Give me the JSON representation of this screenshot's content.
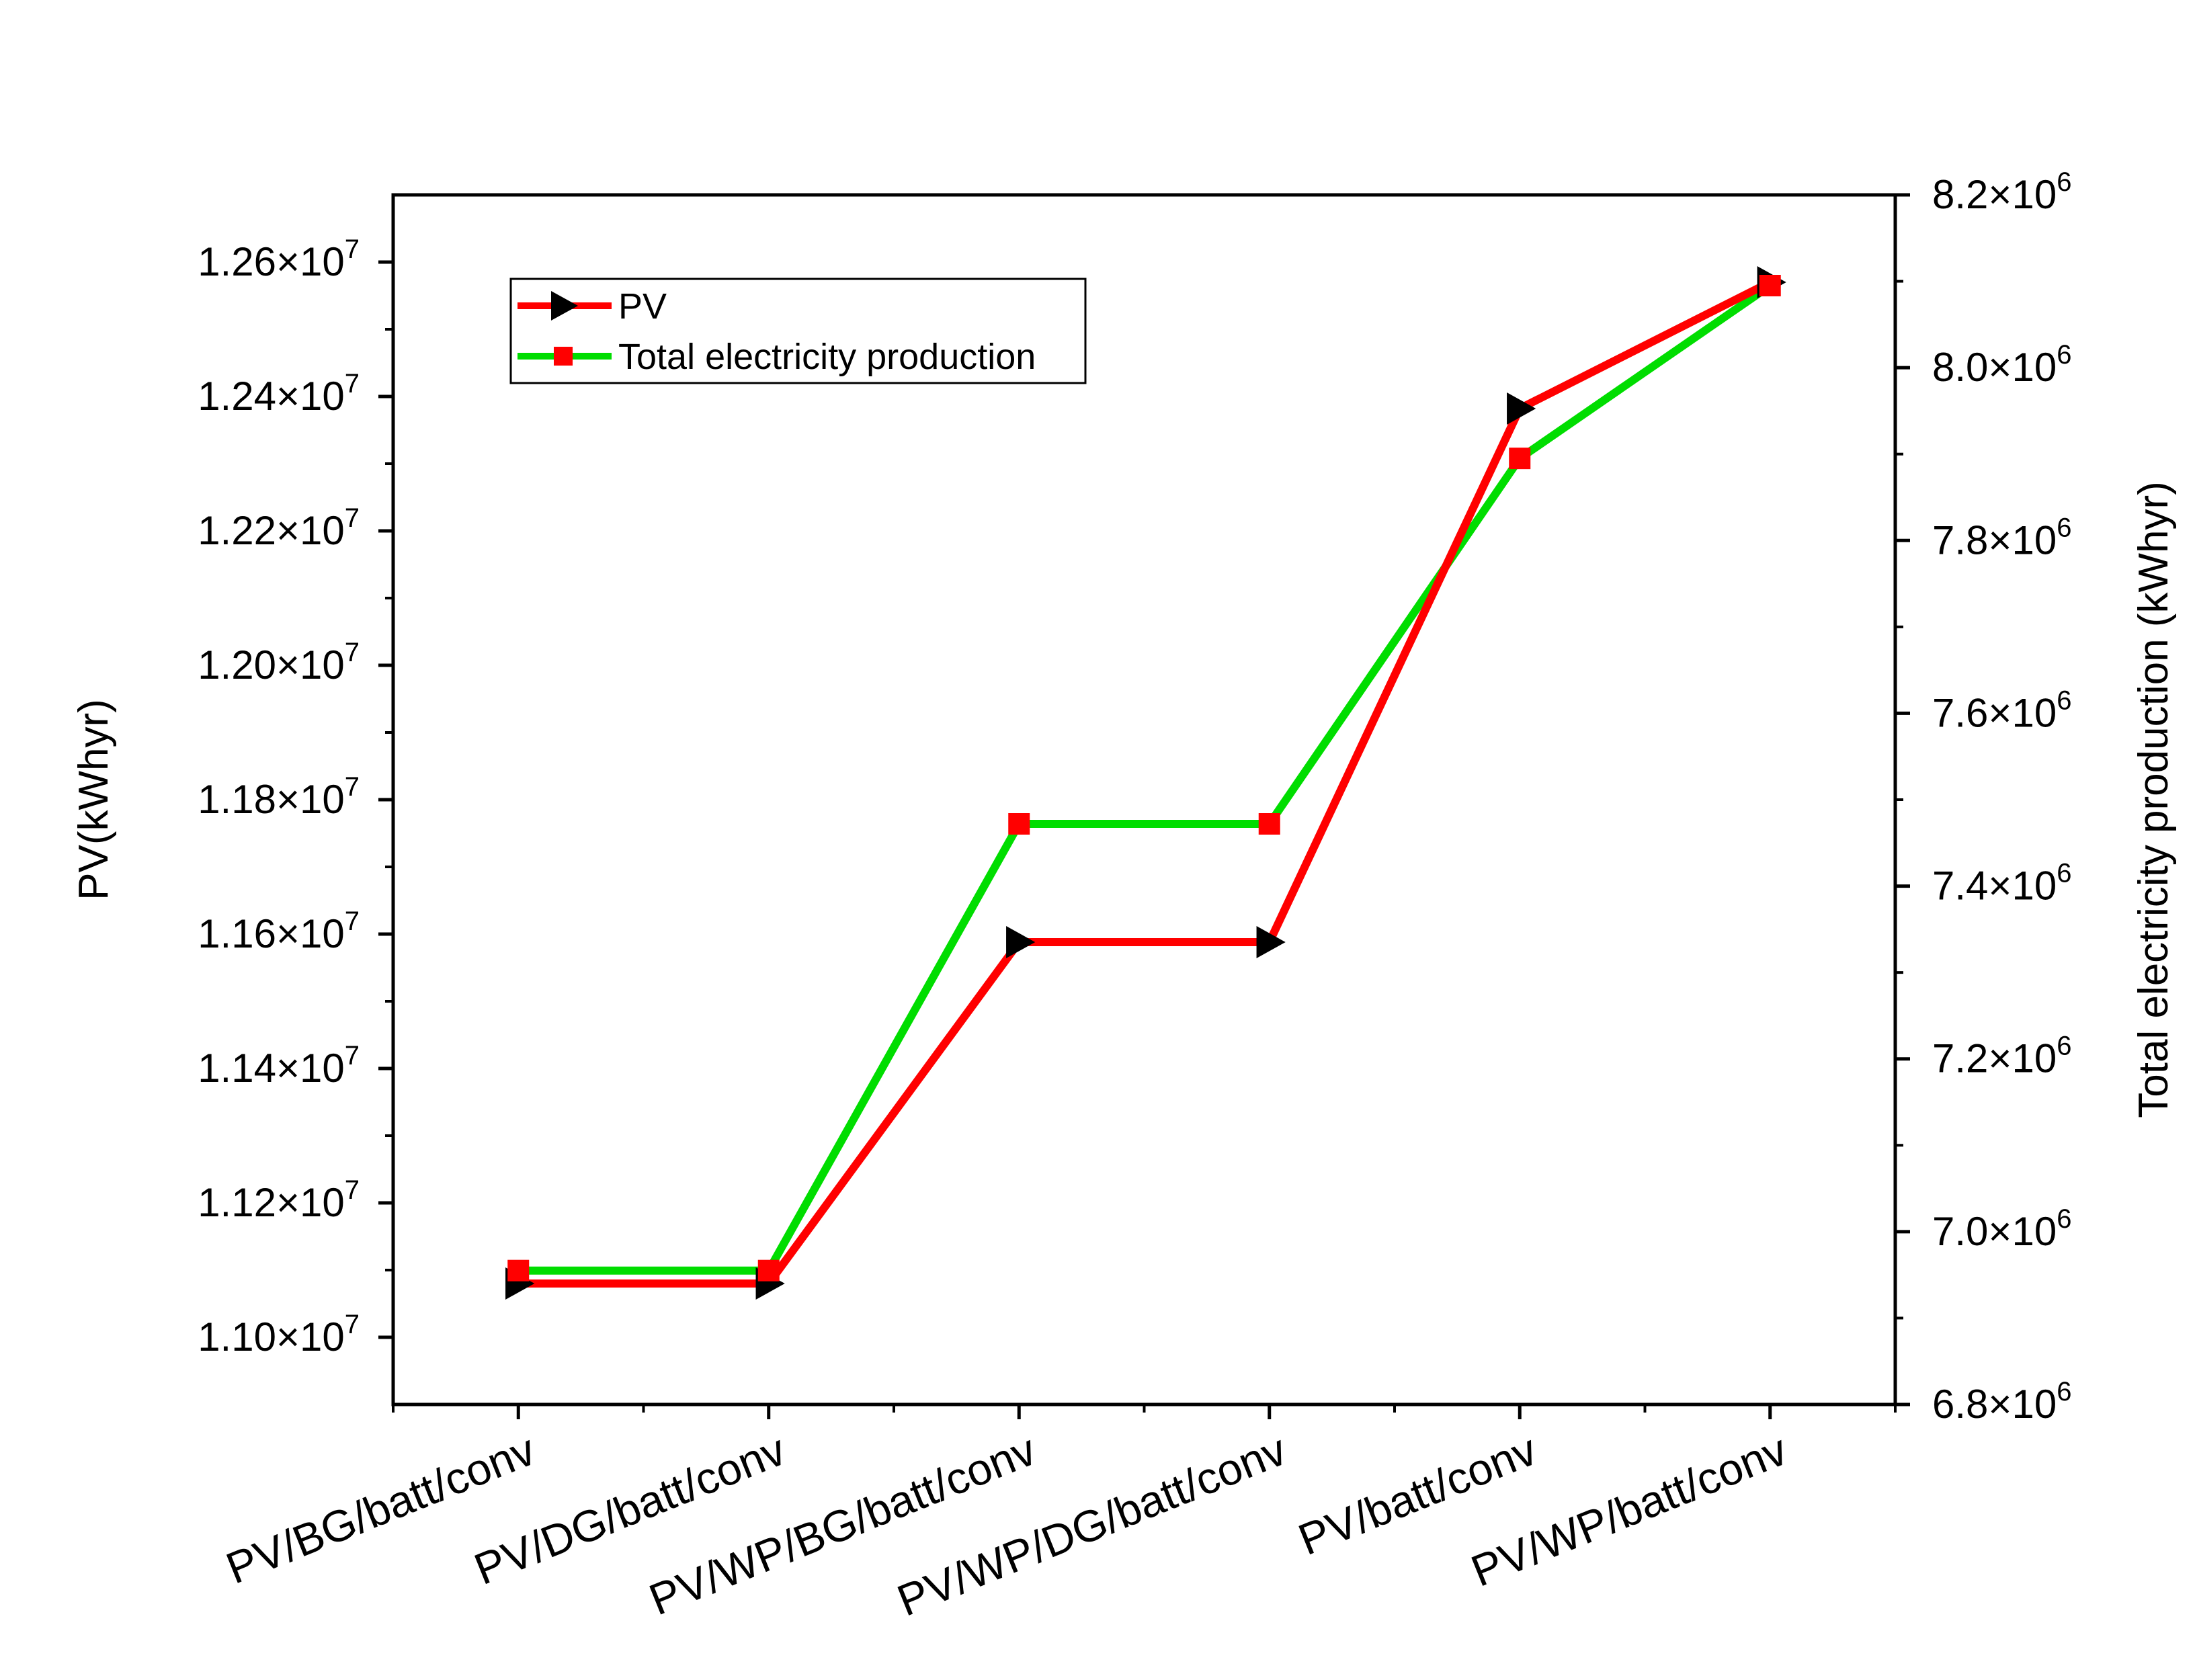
{
  "chart_data": {
    "type": "line",
    "categories": [
      "PV/BG/batt/conv",
      "PV/DG/batt/conv",
      "PV/WP/BG/batt/conv",
      "PV/WP/DG/batt/conv",
      "PV/batt/conv",
      "PV/WP/batt/conv"
    ],
    "series": [
      {
        "name": "PV",
        "axis": "left",
        "color": "#ff0000",
        "marker": "black right-pointing triangle",
        "values": [
          11080000,
          11080000,
          11588000,
          11588000,
          12382000,
          12570000
        ]
      },
      {
        "name": "Total electricity production",
        "axis": "right",
        "color": "#00dd00",
        "marker": "red square",
        "values": [
          6955000,
          6955000,
          7472000,
          7472000,
          7895000,
          8095000
        ]
      }
    ],
    "y_left": {
      "label": "PV(kWhyr)",
      "ylim": [
        10900000,
        12700000
      ],
      "ticks": [
        {
          "value": 11000000,
          "mantissa": "1.10",
          "exp": "7"
        },
        {
          "value": 11200000,
          "mantissa": "1.12",
          "exp": "7"
        },
        {
          "value": 11400000,
          "mantissa": "1.14",
          "exp": "7"
        },
        {
          "value": 11600000,
          "mantissa": "1.16",
          "exp": "7"
        },
        {
          "value": 11800000,
          "mantissa": "1.18",
          "exp": "7"
        },
        {
          "value": 12000000,
          "mantissa": "1.20",
          "exp": "7"
        },
        {
          "value": 12200000,
          "mantissa": "1.22",
          "exp": "7"
        },
        {
          "value": 12400000,
          "mantissa": "1.24",
          "exp": "7"
        },
        {
          "value": 12600000,
          "mantissa": "1.26",
          "exp": "7"
        }
      ]
    },
    "y_right": {
      "label": "Total electricity production (kWhyr)",
      "ylim": [
        6800000,
        8200000
      ],
      "ticks": [
        {
          "value": 6800000,
          "mantissa": "6.8",
          "exp": "6"
        },
        {
          "value": 7000000,
          "mantissa": "7.0",
          "exp": "6"
        },
        {
          "value": 7200000,
          "mantissa": "7.2",
          "exp": "6"
        },
        {
          "value": 7400000,
          "mantissa": "7.4",
          "exp": "6"
        },
        {
          "value": 7600000,
          "mantissa": "7.6",
          "exp": "6"
        },
        {
          "value": 7800000,
          "mantissa": "7.8",
          "exp": "6"
        },
        {
          "value": 8000000,
          "mantissa": "8.0",
          "exp": "6"
        },
        {
          "value": 8200000,
          "mantissa": "8.2",
          "exp": "6"
        }
      ]
    },
    "times_symbol": "×10",
    "grid": false,
    "legend": {
      "placement": "top-left",
      "entries": [
        "PV",
        "Total electricity production"
      ]
    }
  }
}
